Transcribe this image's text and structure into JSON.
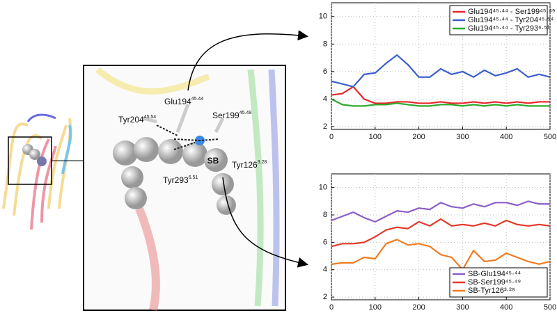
{
  "structure_labels": [
    {
      "text": "Tyr204",
      "sup": "45.54"
    },
    {
      "text": "Glu194",
      "sup": "45.44"
    },
    {
      "text": "Ser199",
      "sup": "45.49"
    },
    {
      "text": "Tyr126",
      "sup": "3.28"
    },
    {
      "text": "Tyr293",
      "sup": "6.51"
    },
    {
      "text": "SB"
    }
  ],
  "chart_data": [
    {
      "type": "line",
      "x": [
        0,
        25,
        50,
        75,
        100,
        125,
        150,
        175,
        200,
        225,
        250,
        275,
        300,
        325,
        350,
        375,
        400,
        425,
        450,
        475,
        500
      ],
      "xlim": [
        0,
        500
      ],
      "xticks": [
        0,
        100,
        200,
        300,
        400,
        500
      ],
      "ylim": [
        1.8,
        11
      ],
      "yticks": [
        2,
        4,
        6,
        8,
        10
      ],
      "grid": true,
      "legend": "top-right",
      "series": [
        {
          "name": "Glu194⁴⁵·⁴⁴ - Ser199⁴⁵·⁴⁹",
          "color": "#e8262b",
          "values": [
            4.3,
            4.4,
            4.9,
            4.0,
            3.7,
            3.7,
            3.8,
            3.8,
            3.7,
            3.7,
            3.8,
            3.7,
            3.7,
            3.8,
            3.7,
            3.8,
            3.7,
            3.8,
            3.7,
            3.8,
            3.8
          ]
        },
        {
          "name": "Glu194⁴⁵·⁴⁴ - Tyr204⁴⁵·⁵⁴",
          "color": "#3a5fcd",
          "values": [
            5.3,
            5.1,
            4.9,
            5.8,
            5.9,
            6.6,
            7.2,
            6.5,
            5.6,
            5.6,
            6.2,
            5.8,
            6.0,
            5.6,
            6.1,
            5.7,
            5.9,
            6.2,
            5.6,
            5.8,
            5.6
          ]
        },
        {
          "name": "Glu194⁴⁵·⁴⁴ - Tyr293⁶·⁵¹",
          "color": "#2eab2e",
          "values": [
            4.0,
            3.6,
            3.5,
            3.5,
            3.6,
            3.6,
            3.7,
            3.6,
            3.5,
            3.5,
            3.6,
            3.6,
            3.5,
            3.6,
            3.5,
            3.6,
            3.5,
            3.6,
            3.5,
            3.5,
            3.5
          ]
        }
      ]
    },
    {
      "type": "line",
      "x": [
        0,
        25,
        50,
        75,
        100,
        125,
        150,
        175,
        200,
        225,
        250,
        275,
        300,
        325,
        350,
        375,
        400,
        425,
        450,
        475,
        500
      ],
      "xlim": [
        0,
        500
      ],
      "xticks": [
        0,
        100,
        200,
        300,
        400,
        500
      ],
      "ylim": [
        1.8,
        11
      ],
      "yticks": [
        2,
        4,
        6,
        8,
        10
      ],
      "grid": true,
      "legend": "bottom-right",
      "series": [
        {
          "name": "SB-Glu194⁴⁵·⁴⁴",
          "color": "#8a5fc8",
          "values": [
            7.6,
            7.9,
            8.2,
            7.8,
            7.5,
            7.9,
            8.3,
            8.2,
            8.5,
            8.4,
            8.9,
            8.6,
            8.5,
            8.8,
            8.6,
            8.9,
            8.9,
            8.7,
            9.0,
            8.8,
            8.8
          ]
        },
        {
          "name": "SB-Ser199⁴⁵·⁴⁹",
          "color": "#e23a2a",
          "values": [
            5.7,
            5.9,
            5.9,
            6.0,
            6.4,
            6.9,
            7.1,
            7.0,
            7.5,
            7.2,
            7.7,
            7.2,
            7.3,
            7.2,
            7.4,
            7.2,
            7.6,
            7.3,
            7.2,
            7.3,
            7.2
          ]
        },
        {
          "name": "SB-Tyr126³·²⁸",
          "color": "#f07c22",
          "values": [
            4.4,
            4.5,
            4.5,
            4.9,
            4.8,
            5.9,
            6.2,
            5.8,
            5.9,
            5.7,
            5.1,
            4.9,
            4.0,
            5.4,
            4.6,
            4.7,
            5.2,
            4.9,
            4.6,
            4.4,
            4.6
          ]
        }
      ]
    }
  ]
}
